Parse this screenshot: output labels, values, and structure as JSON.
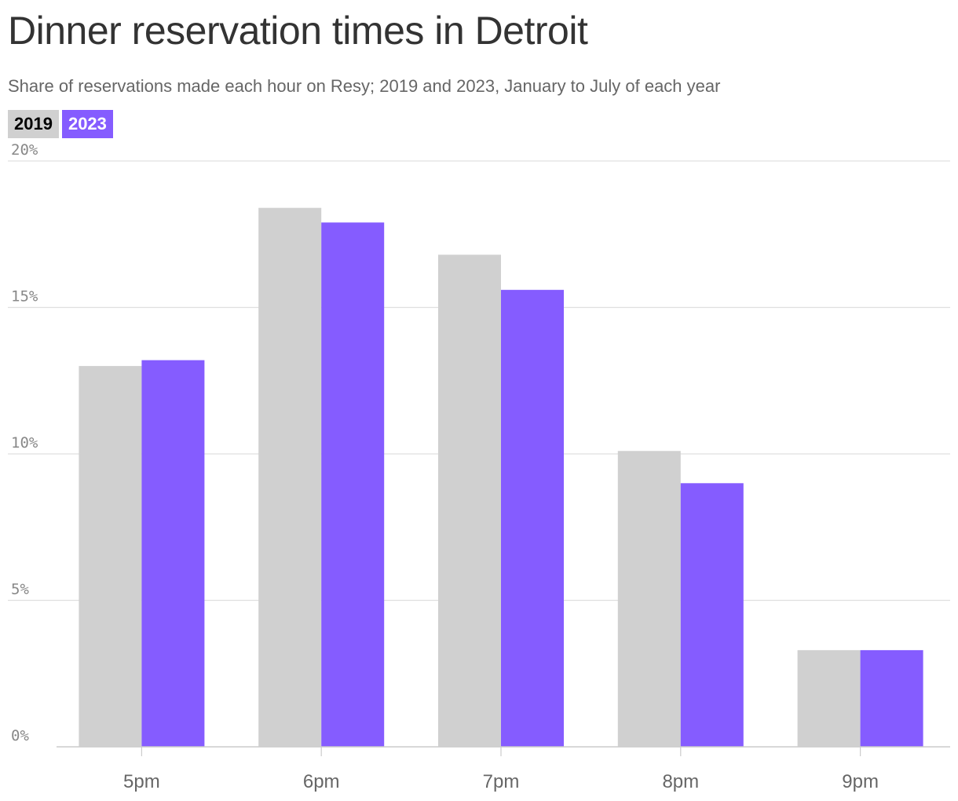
{
  "title": "Dinner reservation times in Detroit",
  "subtitle": "Share of reservations made each hour on Resy; 2019 and 2023, January to July of each year",
  "legend": [
    "2019",
    "2023"
  ],
  "colors": {
    "2019": "#d0d0d0",
    "2023": "#855cff",
    "grid": "#e0e0e0",
    "axis": "#cccccc"
  },
  "chart_data": {
    "type": "bar",
    "categories": [
      "5pm",
      "6pm",
      "7pm",
      "8pm",
      "9pm"
    ],
    "series": [
      {
        "name": "2019",
        "values": [
          13.0,
          18.4,
          16.8,
          10.1,
          3.3
        ]
      },
      {
        "name": "2023",
        "values": [
          13.2,
          17.9,
          15.6,
          9.0,
          3.3
        ]
      }
    ],
    "ylim": [
      0,
      20
    ],
    "yticks": [
      0,
      5,
      10,
      15,
      20
    ],
    "ytick_labels": [
      "0%",
      "5%",
      "10%",
      "15%",
      "20%"
    ],
    "grid": true,
    "legend_position": "top-left"
  }
}
